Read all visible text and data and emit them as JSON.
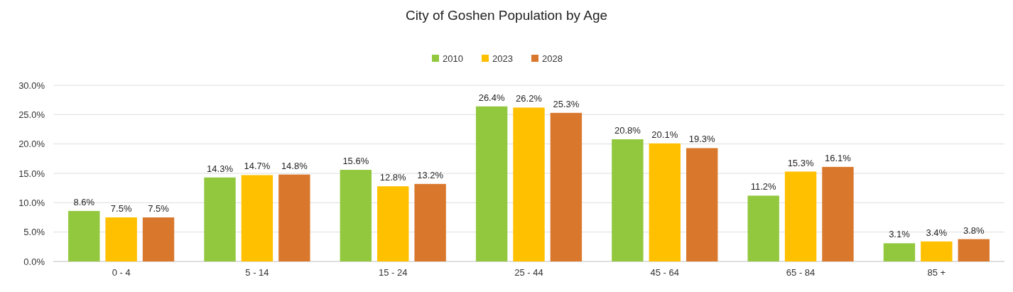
{
  "chart_data": {
    "type": "bar",
    "title": "City of Goshen Population by Age",
    "categories": [
      "0 - 4",
      "5 - 14",
      "15 - 24",
      "25 - 44",
      "45 - 64",
      "65 - 84",
      "85 +"
    ],
    "series": [
      {
        "name": "2010",
        "color": "#92c83e",
        "values": [
          8.6,
          14.3,
          15.6,
          26.4,
          20.8,
          11.2,
          3.1
        ],
        "value_labels": [
          "8.6%",
          "14.3%",
          "15.6%",
          "26.4%",
          "20.8%",
          "11.2%",
          "3.1%"
        ]
      },
      {
        "name": "2023",
        "color": "#ffc000",
        "values": [
          7.5,
          14.7,
          12.8,
          26.2,
          20.1,
          15.3,
          3.4
        ],
        "value_labels": [
          "7.5%",
          "14.7%",
          "12.8%",
          "26.2%",
          "20.1%",
          "15.3%",
          "3.4%"
        ]
      },
      {
        "name": "2028",
        "color": "#d9782d",
        "values": [
          7.5,
          14.8,
          13.2,
          25.3,
          19.3,
          16.1,
          3.8
        ],
        "value_labels": [
          "7.5%",
          "14.8%",
          "13.2%",
          "25.3%",
          "19.3%",
          "16.1%",
          "3.8%"
        ]
      }
    ],
    "ylim": [
      0,
      30
    ],
    "yticks": [
      {
        "value": 0,
        "label": "0.0%"
      },
      {
        "value": 5,
        "label": "5.0%"
      },
      {
        "value": 10,
        "label": "10.0%"
      },
      {
        "value": 15,
        "label": "15.0%"
      },
      {
        "value": 20,
        "label": "20.0%"
      },
      {
        "value": 25,
        "label": "25.0%"
      },
      {
        "value": 30,
        "label": "30.0%"
      }
    ],
    "grid": "y",
    "legend": "top"
  }
}
